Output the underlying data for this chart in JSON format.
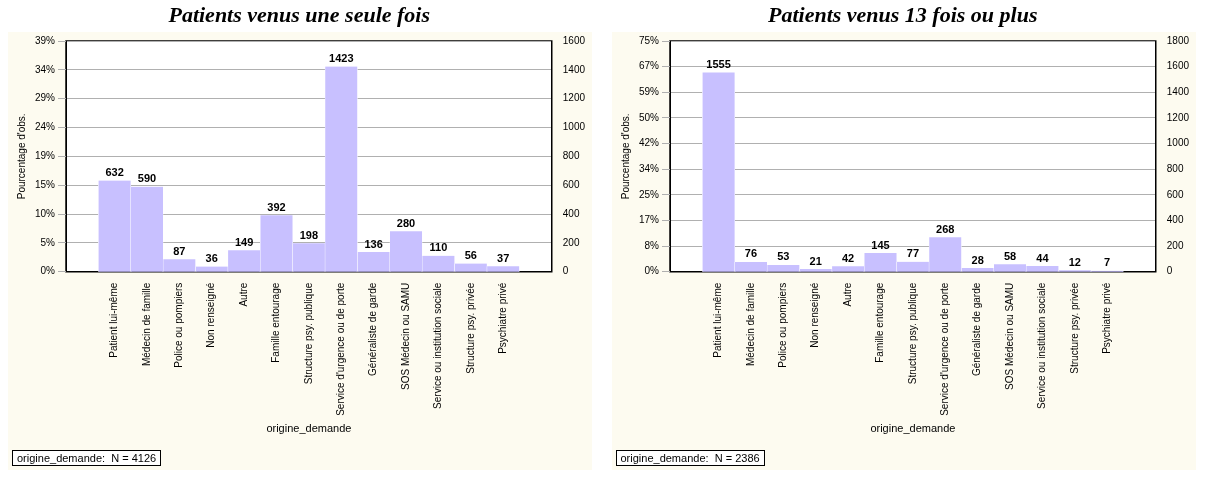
{
  "chart_data": [
    {
      "type": "bar",
      "title": "Patients venus une seule fois",
      "xlabel": "origine_demande",
      "ylabel": "Pourcentage d'obs.",
      "annotations": [
        "origine_demande:  N = 4126"
      ],
      "categories": [
        null,
        "Patient lui-même",
        "Médecin de famille",
        "Police ou pompiers",
        "Non renseigné",
        "Autre",
        "Famille entourage",
        "Structure psy. publique",
        "Service d'urgence ou de porte",
        "Généraliste de garde",
        "SOS Médecin ou SAMU",
        "Service ou institution sociale",
        "Structure psy. privée",
        "Psychiatre privé",
        null
      ],
      "series": [
        {
          "color": "#c8c0ff",
          "axis": "y2",
          "values": [
            null,
            632,
            590,
            87,
            36,
            149,
            392,
            198,
            1423,
            136,
            280,
            110,
            56,
            37,
            null
          ]
        }
      ],
      "ylim": [
        0,
        38.78
      ],
      "yticks": [
        {
          "value": 0,
          "label": "0%"
        },
        {
          "value": 4.85,
          "label": "5%"
        },
        {
          "value": 9.69,
          "label": "10%"
        },
        {
          "value": 14.54,
          "label": "15%"
        },
        {
          "value": 19.39,
          "label": "19%"
        },
        {
          "value": 24.24,
          "label": "24%"
        },
        {
          "value": 29.08,
          "label": "29%"
        },
        {
          "value": 33.93,
          "label": "34%"
        },
        {
          "value": 38.78,
          "label": "39%"
        }
      ],
      "y2lim": [
        0,
        1600
      ],
      "y2ticks": [
        0,
        200,
        400,
        600,
        800,
        1000,
        1200,
        1400,
        1600
      ],
      "grid": "y",
      "data_labels": true
    },
    {
      "type": "bar",
      "title": "Patients venus 13 fois ou plus",
      "xlabel": "origine_demande",
      "ylabel": "Pourcentage d'obs.",
      "annotations": [
        "origine_demande:  N = 2386"
      ],
      "categories": [
        null,
        "Patient lui-même",
        "Médecin de famille",
        "Police ou pompiers",
        "Non renseigné",
        "Autre",
        "Famille entourage",
        "Structure psy. publique",
        "Service d'urgence ou de porte",
        "Généraliste de garde",
        "SOS Médecin ou SAMU",
        "Service ou institution sociale",
        "Structure psy. privée",
        "Psychiatre privé",
        null
      ],
      "series": [
        {
          "color": "#c8c0ff",
          "axis": "y2",
          "values": [
            null,
            1555,
            76,
            53,
            21,
            42,
            145,
            77,
            268,
            28,
            58,
            44,
            12,
            7,
            null
          ]
        }
      ],
      "ylim": [
        0,
        75.44
      ],
      "yticks": [
        {
          "value": 0,
          "label": "0%"
        },
        {
          "value": 8.38,
          "label": "8%"
        },
        {
          "value": 16.76,
          "label": "17%"
        },
        {
          "value": 25.14,
          "label": "25%"
        },
        {
          "value": 33.53,
          "label": "34%"
        },
        {
          "value": 41.91,
          "label": "42%"
        },
        {
          "value": 50.29,
          "label": "50%"
        },
        {
          "value": 58.68,
          "label": "59%"
        },
        {
          "value": 67.06,
          "label": "67%"
        },
        {
          "value": 75.44,
          "label": "75%"
        }
      ],
      "y2lim": [
        0,
        1800
      ],
      "y2ticks": [
        0,
        200,
        400,
        600,
        800,
        1000,
        1200,
        1400,
        1600,
        1800
      ],
      "grid": "y",
      "data_labels": true
    }
  ]
}
